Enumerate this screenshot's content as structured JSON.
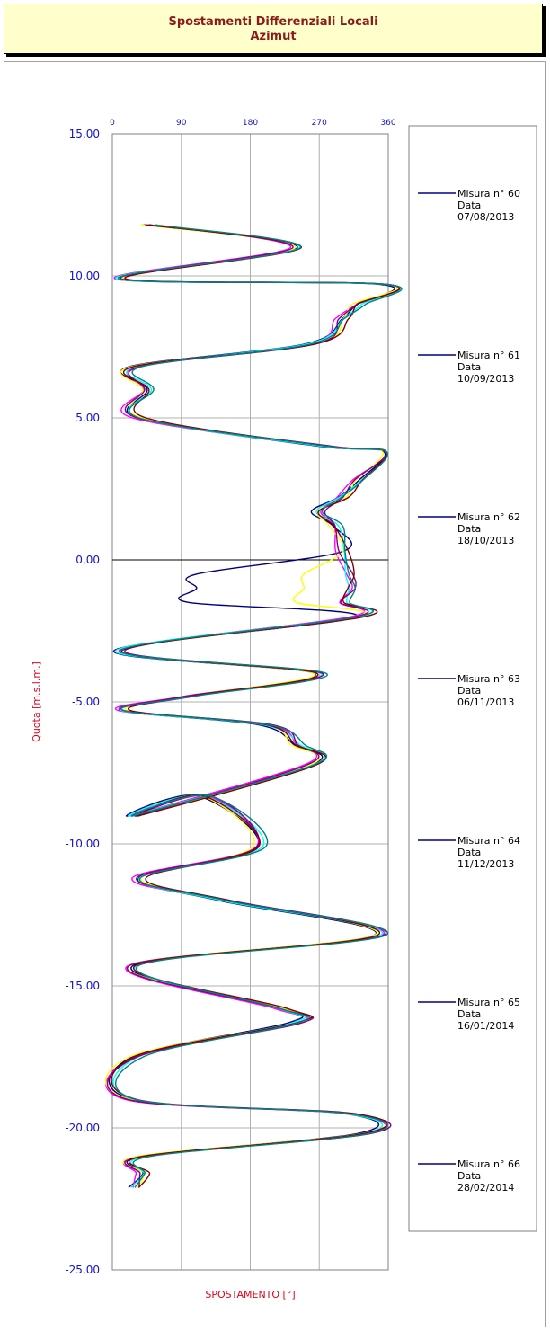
{
  "title": {
    "line1": "Spostamenti Differenziali Locali",
    "line2": "Azimut"
  },
  "chart_data": {
    "type": "line",
    "title": "Spostamenti Differenziali Locali Azimut",
    "xlabel": "SPOSTAMENTO [°]",
    "ylabel": "Quota [m.s.l.m.]",
    "xlim": [
      0,
      360
    ],
    "ylim": [
      -25,
      15
    ],
    "x_ticks": [
      "0",
      "90",
      "180",
      "270",
      "360"
    ],
    "y_ticks": [
      "15,00",
      "10,00",
      "5,00",
      "0,00",
      "-5,00",
      "-10,00",
      "-15,00",
      "-20,00",
      "-25,00"
    ],
    "grid": true,
    "legend_position": "right",
    "colors": [
      "#000080",
      "#ff00ff",
      "#ffff00",
      "#00ffff",
      "#800080",
      "#800000",
      "#008080"
    ],
    "series": [
      {
        "name": "Misura n° 60",
        "date_label": "Data",
        "date": "07/08/2013"
      },
      {
        "name": "Misura n° 61",
        "date_label": "Data",
        "date": "10/09/2013"
      },
      {
        "name": "Misura n° 62",
        "date_label": "Data",
        "date": "18/10/2013"
      },
      {
        "name": "Misura n° 63",
        "date_label": "Data",
        "date": "06/11/2013"
      },
      {
        "name": "Misura n° 64",
        "date_label": "Data",
        "date": "11/12/2013"
      },
      {
        "name": "Misura n° 65",
        "date_label": "Data",
        "date": "16/01/2014"
      },
      {
        "name": "Misura n° 66",
        "date_label": "Data",
        "date": "28/02/2014"
      }
    ],
    "base_profile": [
      [
        45,
        11.8
      ],
      [
        240,
        11.0
      ],
      [
        10,
        9.9
      ],
      [
        360,
        9.7
      ],
      [
        320,
        9.0
      ],
      [
        300,
        8.5
      ],
      [
        260,
        7.6
      ],
      [
        30,
        6.8
      ],
      [
        45,
        6.0
      ],
      [
        35,
        5.0
      ],
      [
        280,
        4.0
      ],
      [
        360,
        3.8
      ],
      [
        320,
        2.8
      ],
      [
        300,
        2.2
      ],
      [
        270,
        1.7
      ],
      [
        290,
        1.2
      ],
      [
        300,
        0.3
      ],
      [
        310,
        -0.5
      ],
      [
        310,
        -1.0
      ],
      [
        300,
        -1.5
      ],
      [
        320,
        -2.0
      ],
      [
        10,
        -3.2
      ],
      [
        270,
        -4.0
      ],
      [
        100,
        -4.8
      ],
      [
        15,
        -5.3
      ],
      [
        200,
        -5.8
      ],
      [
        240,
        -6.5
      ],
      [
        260,
        -7.2
      ],
      [
        30,
        -9.0
      ],
      [
        120,
        -8.3
      ],
      [
        190,
        -10.1
      ],
      [
        35,
        -11.2
      ],
      [
        150,
        -12.0
      ],
      [
        350,
        -13.2
      ],
      [
        25,
        -14.3
      ],
      [
        220,
        -15.8
      ],
      [
        240,
        -16.3
      ],
      [
        30,
        -17.5
      ],
      [
        25,
        -19.0
      ],
      [
        310,
        -19.5
      ],
      [
        330,
        -20.2
      ],
      [
        40,
        -21.0
      ],
      [
        40,
        -21.6
      ],
      [
        30,
        -22.1
      ]
    ],
    "legend_line_color": "#000080"
  }
}
